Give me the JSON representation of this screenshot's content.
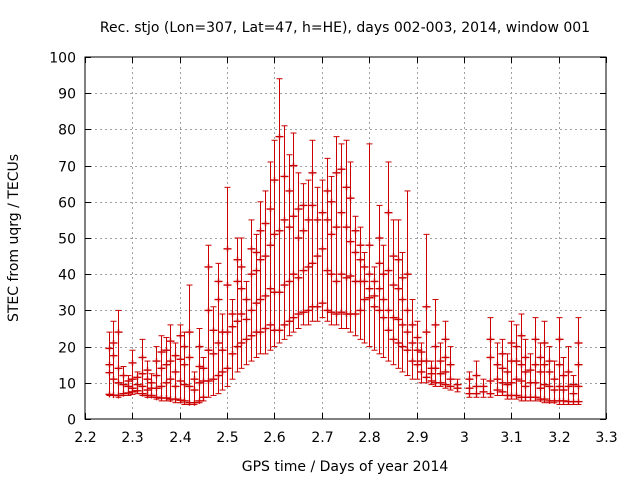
{
  "chart_data": {
    "type": "errorbar",
    "title": "Rec. stjo (Lon=307, Lat=47, h=HE), days 002-003, 2014, window 001",
    "xlabel": "GPS time / Days of year 2014",
    "ylabel": "STEC from uqrg / TECUs",
    "xlim": [
      2.2,
      3.3
    ],
    "ylim": [
      0,
      100
    ],
    "xticks": [
      "2.2",
      "2.3",
      "2.4",
      "2.5",
      "2.6",
      "2.7",
      "2.8",
      "2.9",
      "3",
      "3.1",
      "3.2",
      "3.3"
    ],
    "yticks": [
      "0",
      "10",
      "20",
      "30",
      "40",
      "50",
      "60",
      "70",
      "80",
      "90",
      "100"
    ],
    "grid": true,
    "series_color": "#cc0000",
    "series": [
      {
        "x": 2.25,
        "low": 6.5,
        "high": 24.0,
        "marks": [
          6.8,
          12.8,
          15.0,
          19.5
        ]
      },
      {
        "x": 2.26,
        "low": 6.5,
        "high": 27.0,
        "marks": [
          6.6,
          11.0,
          17.5,
          21.0
        ]
      },
      {
        "x": 2.27,
        "low": 6.0,
        "high": 30.0,
        "marks": [
          6.5,
          10.0,
          14.0,
          24.0
        ]
      },
      {
        "x": 2.28,
        "low": 6.5,
        "high": 14.5,
        "marks": [
          7.0,
          9.5,
          12.0
        ]
      },
      {
        "x": 2.29,
        "low": 6.5,
        "high": 12.0,
        "marks": [
          7.2,
          9.0,
          10.5
        ]
      },
      {
        "x": 2.3,
        "low": 6.8,
        "high": 19.0,
        "marks": [
          7.5,
          8.5,
          11.0,
          15.5
        ]
      },
      {
        "x": 2.31,
        "low": 7.0,
        "high": 13.0,
        "marks": [
          7.8,
          9.5,
          11.5
        ]
      },
      {
        "x": 2.32,
        "low": 6.5,
        "high": 22.0,
        "marks": [
          7.0,
          9.0,
          12.5,
          17.0
        ]
      },
      {
        "x": 2.33,
        "low": 6.0,
        "high": 16.0,
        "marks": [
          6.5,
          8.0,
          11.0,
          13.5
        ]
      },
      {
        "x": 2.34,
        "low": 6.0,
        "high": 12.5,
        "marks": [
          6.5,
          8.5,
          10.0
        ]
      },
      {
        "x": 2.35,
        "low": 5.5,
        "high": 20.0,
        "marks": [
          6.0,
          8.5,
          12.0,
          16.0
        ]
      },
      {
        "x": 2.36,
        "low": 5.0,
        "high": 23.0,
        "marks": [
          5.8,
          9.0,
          14.0,
          18.5
        ]
      },
      {
        "x": 2.37,
        "low": 5.0,
        "high": 22.5,
        "marks": [
          5.8,
          10.0,
          15.0,
          19.0
        ]
      },
      {
        "x": 2.38,
        "low": 5.0,
        "high": 26.0,
        "marks": [
          5.5,
          11.0,
          16.0,
          21.5
        ]
      },
      {
        "x": 2.39,
        "low": 4.5,
        "high": 21.0,
        "marks": [
          5.5,
          9.0,
          13.0,
          17.5
        ]
      },
      {
        "x": 2.4,
        "low": 4.5,
        "high": 26.0,
        "marks": [
          5.2,
          10.5,
          16.5,
          23.0
        ]
      },
      {
        "x": 2.41,
        "low": 4.0,
        "high": 24.0,
        "marks": [
          5.0,
          9.5,
          15.0,
          20.0
        ]
      },
      {
        "x": 2.42,
        "low": 4.0,
        "high": 37.0,
        "marks": [
          4.5,
          9.0,
          17.0,
          24.0
        ]
      },
      {
        "x": 2.43,
        "low": 4.0,
        "high": 13.0,
        "marks": [
          4.5,
          8.0,
          11.0
        ]
      },
      {
        "x": 2.44,
        "low": 4.5,
        "high": 25.0,
        "marks": [
          5.0,
          10.0,
          14.5,
          20.0
        ]
      },
      {
        "x": 2.45,
        "low": 5.0,
        "high": 17.0,
        "marks": [
          6.0,
          10.5,
          14.0
        ]
      },
      {
        "x": 2.46,
        "low": 6.0,
        "high": 48.0,
        "marks": [
          10.5,
          19.0,
          30.0,
          42.0
        ]
      },
      {
        "x": 2.47,
        "low": 6.5,
        "high": 31.0,
        "marks": [
          11.0,
          18.0,
          24.5
        ]
      },
      {
        "x": 2.48,
        "low": 7.0,
        "high": 43.0,
        "marks": [
          12.0,
          21.0,
          33.0,
          38.0
        ]
      },
      {
        "x": 2.49,
        "low": 8.0,
        "high": 29.0,
        "marks": [
          13.0,
          19.0,
          24.0
        ]
      },
      {
        "x": 2.5,
        "low": 9.0,
        "high": 64.0,
        "marks": [
          14.0,
          24.0,
          37.0,
          47.0
        ]
      },
      {
        "x": 2.51,
        "low": 11.0,
        "high": 33.0,
        "marks": [
          18.0,
          25.5,
          29.0
        ]
      },
      {
        "x": 2.52,
        "low": 13.0,
        "high": 50.0,
        "marks": [
          20.0,
          27.0,
          38.0,
          44.0
        ]
      },
      {
        "x": 2.53,
        "low": 14.0,
        "high": 50.0,
        "marks": [
          21.0,
          29.0,
          36.0,
          42.0
        ]
      },
      {
        "x": 2.54,
        "low": 15.0,
        "high": 38.0,
        "marks": [
          22.0,
          27.5,
          33.0
        ]
      },
      {
        "x": 2.55,
        "low": 16.0,
        "high": 55.0,
        "marks": [
          23.0,
          30.0,
          40.0,
          47.0
        ]
      },
      {
        "x": 2.56,
        "low": 17.0,
        "high": 51.0,
        "marks": [
          24.0,
          32.0,
          41.0,
          46.0
        ]
      },
      {
        "x": 2.57,
        "low": 18.0,
        "high": 60.0,
        "marks": [
          24.0,
          33.0,
          44.0,
          52.0
        ]
      },
      {
        "x": 2.58,
        "low": 18.0,
        "high": 63.0,
        "marks": [
          25.0,
          34.0,
          45.0,
          54.0
        ]
      },
      {
        "x": 2.59,
        "low": 19.0,
        "high": 71.0,
        "marks": [
          26.0,
          36.0,
          48.0,
          58.0
        ]
      },
      {
        "x": 2.6,
        "low": 20.0,
        "high": 77.0,
        "marks": [
          24.5,
          35.0,
          51.0,
          66.0
        ]
      },
      {
        "x": 2.61,
        "low": 21.0,
        "high": 94.0,
        "marks": [
          24.5,
          35.0,
          52.0,
          78.0
        ]
      },
      {
        "x": 2.62,
        "low": 22.0,
        "high": 81.0,
        "marks": [
          26.0,
          37.0,
          55.0,
          67.0
        ]
      },
      {
        "x": 2.63,
        "low": 23.0,
        "high": 73.0,
        "marks": [
          27.0,
          38.0,
          53.0,
          63.0
        ]
      },
      {
        "x": 2.64,
        "low": 24.0,
        "high": 79.0,
        "marks": [
          28.0,
          40.0,
          56.0,
          70.0
        ]
      },
      {
        "x": 2.65,
        "low": 25.0,
        "high": 68.0,
        "marks": [
          29.0,
          39.0,
          50.0,
          58.0
        ]
      },
      {
        "x": 2.66,
        "low": 26.0,
        "high": 65.0,
        "marks": [
          29.5,
          41.0,
          52.0,
          59.0
        ]
      },
      {
        "x": 2.67,
        "low": 26.0,
        "high": 66.0,
        "marks": [
          30.0,
          42.0,
          55.0
        ]
      },
      {
        "x": 2.68,
        "low": 27.0,
        "high": 77.0,
        "marks": [
          31.0,
          43.0,
          59.0,
          68.0
        ]
      },
      {
        "x": 2.69,
        "low": 27.0,
        "high": 64.0,
        "marks": [
          31.0,
          45.0,
          55.0
        ]
      },
      {
        "x": 2.7,
        "low": 28.0,
        "high": 66.0,
        "marks": [
          32.0,
          47.0,
          57.0
        ]
      },
      {
        "x": 2.71,
        "low": 27.0,
        "high": 72.0,
        "marks": [
          30.0,
          41.0,
          55.0,
          63.0
        ]
      },
      {
        "x": 2.72,
        "low": 26.0,
        "high": 67.0,
        "marks": [
          29.5,
          40.0,
          51.0,
          60.0
        ]
      },
      {
        "x": 2.73,
        "low": 26.0,
        "high": 78.0,
        "marks": [
          29.0,
          38.0,
          53.0,
          68.0
        ]
      },
      {
        "x": 2.74,
        "low": 25.0,
        "high": 76.0,
        "marks": [
          29.5,
          40.0,
          57.0,
          69.0
        ]
      },
      {
        "x": 2.75,
        "low": 25.0,
        "high": 77.0,
        "marks": [
          29.0,
          39.0,
          53.0,
          64.0
        ]
      },
      {
        "x": 2.76,
        "low": 24.0,
        "high": 71.0,
        "marks": [
          29.0,
          39.5,
          49.0,
          61.0
        ]
      },
      {
        "x": 2.77,
        "low": 23.0,
        "high": 56.0,
        "marks": [
          29.0,
          38.0,
          46.0,
          52.0
        ]
      },
      {
        "x": 2.78,
        "low": 22.0,
        "high": 53.0,
        "marks": [
          30.0,
          38.0,
          44.0,
          48.0
        ]
      },
      {
        "x": 2.79,
        "low": 21.0,
        "high": 46.0,
        "marks": [
          33.0,
          38.0,
          42.0
        ]
      },
      {
        "x": 2.8,
        "low": 20.0,
        "high": 76.0,
        "marks": [
          33.5,
          36.0,
          40.0,
          48.0
        ]
      },
      {
        "x": 2.81,
        "low": 19.0,
        "high": 42.0,
        "marks": [
          31.0,
          34.0,
          38.0
        ]
      },
      {
        "x": 2.82,
        "low": 18.0,
        "high": 59.0,
        "marks": [
          30.0,
          36.0,
          43.0,
          50.0
        ]
      },
      {
        "x": 2.83,
        "low": 17.0,
        "high": 48.0,
        "marks": [
          28.0,
          33.0,
          40.0
        ]
      },
      {
        "x": 2.84,
        "low": 16.0,
        "high": 71.0,
        "marks": [
          24.5,
          30.0,
          41.0,
          57.0
        ]
      },
      {
        "x": 2.85,
        "low": 15.0,
        "high": 55.0,
        "marks": [
          22.0,
          28.0,
          37.0,
          45.0
        ]
      },
      {
        "x": 2.86,
        "low": 14.0,
        "high": 55.0,
        "marks": [
          21.0,
          27.5,
          36.0,
          44.0
        ]
      },
      {
        "x": 2.87,
        "low": 13.0,
        "high": 46.0,
        "marks": [
          20.0,
          26.0,
          33.0,
          39.0
        ]
      },
      {
        "x": 2.88,
        "low": 12.0,
        "high": 63.0,
        "marks": [
          19.0,
          24.0,
          30.0,
          40.0
        ]
      },
      {
        "x": 2.89,
        "low": 11.0,
        "high": 33.0,
        "marks": [
          16.0,
          21.0,
          26.0
        ]
      },
      {
        "x": 2.9,
        "low": 11.0,
        "high": 27.0,
        "marks": [
          15.0,
          19.0,
          22.5
        ]
      },
      {
        "x": 2.91,
        "low": 10.0,
        "high": 21.0,
        "marks": [
          13.0,
          16.0,
          18.5
        ]
      },
      {
        "x": 2.92,
        "low": 10.0,
        "high": 51.0,
        "marks": [
          11.5,
          16.0,
          24.0,
          31.0
        ]
      },
      {
        "x": 2.93,
        "low": 9.5,
        "high": 16.0,
        "marks": [
          10.5,
          12.5,
          14.0
        ]
      },
      {
        "x": 2.94,
        "low": 9.0,
        "high": 33.0,
        "marks": [
          10.0,
          14.0,
          20.0,
          26.0
        ]
      },
      {
        "x": 2.95,
        "low": 9.0,
        "high": 21.0,
        "marks": [
          10.0,
          12.5,
          16.0
        ]
      },
      {
        "x": 2.96,
        "low": 8.5,
        "high": 27.0,
        "marks": [
          9.5,
          13.0,
          17.0,
          22.0
        ]
      },
      {
        "x": 2.97,
        "low": 8.0,
        "high": 20.0,
        "marks": [
          9.0,
          11.0,
          15.0
        ]
      },
      {
        "x": 2.985,
        "low": 7.5,
        "high": 11.0,
        "marks": [
          8.5,
          9.5
        ]
      },
      {
        "x": 3.01,
        "low": 6.0,
        "high": 13.0,
        "marks": [
          7.0,
          8.5,
          11.0
        ]
      },
      {
        "x": 3.025,
        "low": 6.0,
        "high": 16.0,
        "marks": [
          7.0,
          9.0,
          12.0
        ]
      },
      {
        "x": 3.04,
        "low": 6.0,
        "high": 11.0,
        "marks": [
          7.5,
          9.0
        ]
      },
      {
        "x": 3.055,
        "low": 6.0,
        "high": 28.0,
        "marks": [
          7.0,
          10.5,
          17.0,
          22.0
        ]
      },
      {
        "x": 3.07,
        "low": 6.5,
        "high": 21.0,
        "marks": [
          8.0,
          11.0,
          15.0
        ]
      },
      {
        "x": 3.08,
        "low": 6.5,
        "high": 22.0,
        "marks": [
          7.5,
          10.0,
          14.0,
          18.0
        ]
      },
      {
        "x": 3.09,
        "low": 5.5,
        "high": 18.0,
        "marks": [
          6.5,
          9.5,
          13.0
        ]
      },
      {
        "x": 3.1,
        "low": 5.5,
        "high": 27.0,
        "marks": [
          6.5,
          10.0,
          16.0,
          21.0
        ]
      },
      {
        "x": 3.11,
        "low": 5.5,
        "high": 26.0,
        "marks": [
          6.5,
          11.0,
          16.0,
          20.0
        ]
      },
      {
        "x": 3.12,
        "low": 5.0,
        "high": 29.0,
        "marks": [
          6.0,
          10.5,
          15.0,
          23.0
        ]
      },
      {
        "x": 3.13,
        "low": 5.0,
        "high": 22.0,
        "marks": [
          6.0,
          9.0,
          13.0,
          17.0
        ]
      },
      {
        "x": 3.14,
        "low": 5.0,
        "high": 18.0,
        "marks": [
          6.0,
          10.0,
          13.5
        ]
      },
      {
        "x": 3.15,
        "low": 5.0,
        "high": 28.0,
        "marks": [
          6.0,
          10.0,
          15.0,
          22.0
        ]
      },
      {
        "x": 3.16,
        "low": 5.0,
        "high": 21.0,
        "marks": [
          5.5,
          8.5,
          13.0,
          17.0
        ]
      },
      {
        "x": 3.17,
        "low": 4.5,
        "high": 27.0,
        "marks": [
          5.5,
          9.5,
          15.0,
          21.0
        ]
      },
      {
        "x": 3.18,
        "low": 4.5,
        "high": 20.0,
        "marks": [
          5.0,
          9.0,
          13.0,
          16.0
        ]
      },
      {
        "x": 3.19,
        "low": 4.5,
        "high": 16.0,
        "marks": [
          5.0,
          8.0,
          11.0
        ]
      },
      {
        "x": 3.2,
        "low": 4.0,
        "high": 28.0,
        "marks": [
          5.0,
          9.0,
          15.0,
          22.0
        ]
      },
      {
        "x": 3.21,
        "low": 4.0,
        "high": 17.0,
        "marks": [
          5.0,
          8.0,
          12.0
        ]
      },
      {
        "x": 3.22,
        "low": 4.0,
        "high": 20.0,
        "marks": [
          4.8,
          9.0,
          13.0
        ]
      },
      {
        "x": 3.23,
        "low": 4.0,
        "high": 12.0,
        "marks": [
          4.8,
          7.0,
          9.5
        ]
      },
      {
        "x": 3.24,
        "low": 4.0,
        "high": 28.0,
        "marks": [
          4.8,
          9.0,
          15.0,
          21.0
        ]
      }
    ]
  }
}
